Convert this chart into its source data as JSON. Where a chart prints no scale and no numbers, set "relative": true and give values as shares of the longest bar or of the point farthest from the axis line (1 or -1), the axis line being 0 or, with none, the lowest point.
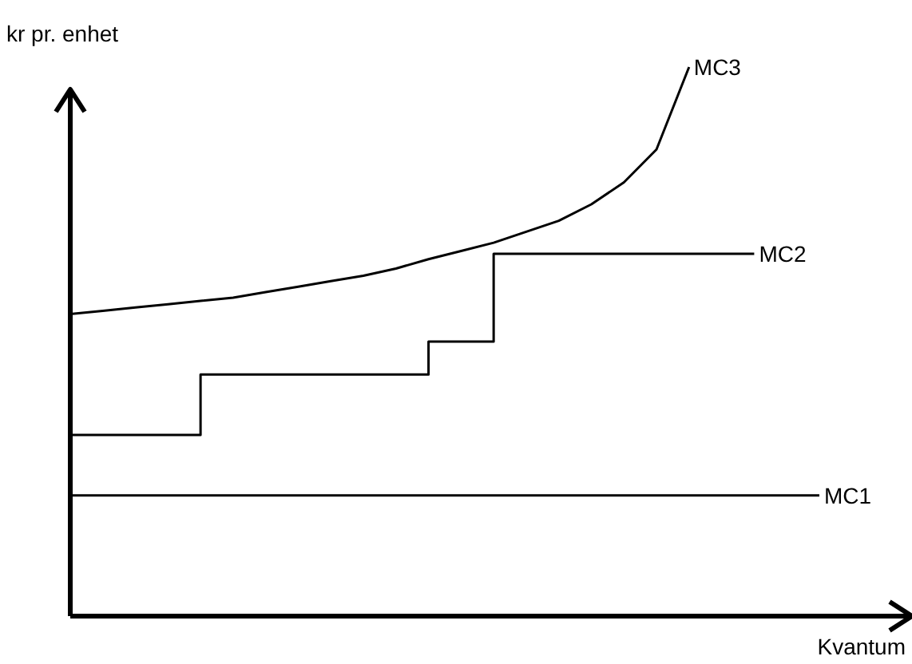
{
  "chart_data": {
    "type": "line",
    "relative": true,
    "xlabel": "Kvantum",
    "ylabel": "kr pr. enhet",
    "categories": [
      null,
      null,
      null,
      null,
      null,
      null,
      null,
      null,
      null,
      null,
      null,
      null,
      null,
      null,
      null,
      null,
      null,
      null,
      null,
      null,
      null,
      null,
      null,
      null,
      null,
      null
    ],
    "series": [
      {
        "name": "MC3",
        "color": "#000000",
        "values": [
          0.55,
          0.556,
          0.562,
          0.568,
          0.574,
          0.58,
          0.59,
          0.6,
          0.61,
          0.62,
          0.633,
          0.65,
          0.665,
          0.68,
          0.7,
          0.72,
          0.75,
          0.79,
          0.85,
          1.0,
          null,
          null,
          null,
          null,
          null,
          null
        ]
      },
      {
        "name": "MC2",
        "type": "step",
        "color": "#000000",
        "values": [
          0.33,
          0.33,
          0.33,
          0.33,
          0.44,
          0.44,
          0.44,
          0.44,
          0.44,
          0.44,
          0.44,
          0.5,
          0.5,
          0.66,
          0.66,
          0.66,
          0.66,
          0.66,
          0.66,
          0.66,
          0.66,
          0.66,
          null,
          null,
          null,
          null
        ]
      },
      {
        "name": "MC1",
        "color": "#000000",
        "values": [
          0.22,
          0.22,
          0.22,
          0.22,
          0.22,
          0.22,
          0.22,
          0.22,
          0.22,
          0.22,
          0.22,
          0.22,
          0.22,
          0.22,
          0.22,
          0.22,
          0.22,
          0.22,
          0.22,
          0.22,
          0.22,
          0.22,
          0.22,
          0.22,
          null,
          null
        ]
      }
    ]
  }
}
